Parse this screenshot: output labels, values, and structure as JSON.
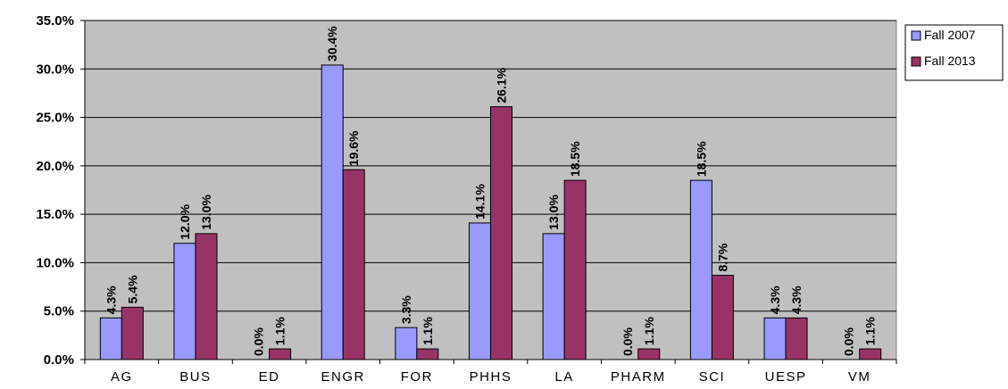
{
  "chart_data": {
    "type": "bar",
    "title": "",
    "xlabel": "",
    "ylabel": "",
    "categories": [
      "AG",
      "BUS",
      "ED",
      "ENGR",
      "FOR",
      "PHHS",
      "LA",
      "PHARM",
      "SCI",
      "UESP",
      "VM"
    ],
    "series": [
      {
        "name": "Fall 2007",
        "color": "#9999ff",
        "values": [
          4.3,
          12.0,
          0.0,
          30.4,
          3.3,
          14.1,
          13.0,
          0.0,
          18.5,
          4.3,
          0.0
        ],
        "labels": [
          "4.3%",
          "12.0%",
          "0.0%",
          "30.4%",
          "3.3%",
          "14.1%",
          "13.0%",
          "0.0%",
          "18.5%",
          "4.3%",
          "0.0%"
        ]
      },
      {
        "name": "Fall 2013",
        "color": "#993366",
        "values": [
          5.4,
          13.0,
          1.1,
          19.6,
          1.1,
          26.1,
          18.5,
          1.1,
          8.7,
          4.3,
          1.1
        ],
        "labels": [
          "5.4%",
          "13.0%",
          "1.1%",
          "19.6%",
          "1.1%",
          "26.1%",
          "18.5%",
          "1.1%",
          "8.7%",
          "4.3%",
          "1.1%"
        ]
      }
    ],
    "ylim": [
      0,
      35
    ],
    "yticks": [
      "0.0%",
      "5.0%",
      "10.0%",
      "15.0%",
      "20.0%",
      "25.0%",
      "30.0%",
      "35.0%"
    ],
    "grid": true,
    "plot_background": "#c0c0c0",
    "legend_position": "top-right"
  }
}
